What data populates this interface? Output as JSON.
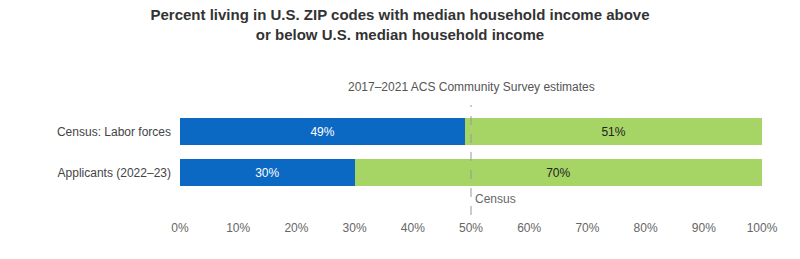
{
  "chart_data": {
    "type": "bar",
    "title": [
      "Percent living in U.S. ZIP codes with median household income above",
      "or below U.S. median household income"
    ],
    "subtitle": "2017–2021 ACS Community Survey estimates",
    "orientation": "horizontal",
    "stacked": true,
    "data_labels": true,
    "grid": false,
    "categories": [
      "Census: Labor forces",
      "Applicants (2022–23)"
    ],
    "series": [
      {
        "color": "#0b69c4",
        "values": [
          49,
          30
        ],
        "value_labels": [
          "49%",
          "30%"
        ]
      },
      {
        "color": "#a6d465",
        "values": [
          51,
          70
        ],
        "value_labels": [
          "51%",
          "70%"
        ]
      }
    ],
    "xlim": [
      0,
      100
    ],
    "xticks": [
      {
        "value": 0,
        "label": "0%"
      },
      {
        "value": 10,
        "label": "10%"
      },
      {
        "value": 20,
        "label": "20%"
      },
      {
        "value": 30,
        "label": "30%"
      },
      {
        "value": 40,
        "label": "40%"
      },
      {
        "value": 50,
        "label": "50%"
      },
      {
        "value": 60,
        "label": "60%"
      },
      {
        "value": 70,
        "label": "70%"
      },
      {
        "value": 80,
        "label": "80%"
      },
      {
        "value": 90,
        "label": "90%"
      },
      {
        "value": 100,
        "label": "100%"
      }
    ],
    "annotations": [
      {
        "x": 50,
        "text": "Census",
        "line_style": "dashed"
      }
    ]
  }
}
